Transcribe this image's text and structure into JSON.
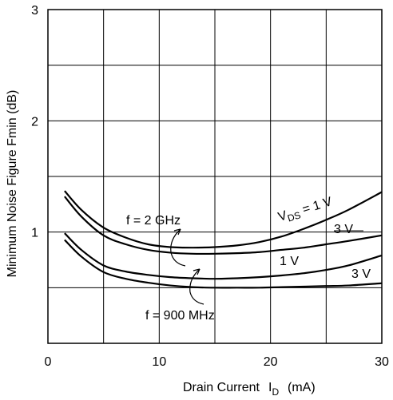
{
  "chart_data": {
    "type": "line",
    "title": "",
    "xlabel": "Drain Current",
    "xlabel_symbol": "I",
    "xlabel_subscript": "D",
    "xlabel_unit": "(mA)",
    "ylabel": "Minimum Noise Figure  Fmin  (dB)",
    "xlim": [
      0,
      30
    ],
    "ylim": [
      0,
      3
    ],
    "x_ticks": [
      0,
      10,
      20,
      30
    ],
    "x_tick_labels": [
      "0",
      "10",
      "20",
      "30"
    ],
    "y_ticks": [
      0,
      1,
      2,
      3
    ],
    "y_tick_labels": [
      "",
      "1",
      "2",
      "3"
    ],
    "grid": {
      "x_step": 5,
      "y_step": 0.5
    },
    "series": [
      {
        "group": "f = 2 GHz",
        "label": "1 V",
        "x": [
          1.5,
          3,
          5,
          7,
          9,
          11,
          13,
          15,
          17,
          19,
          21,
          23,
          25,
          27,
          30
        ],
        "y": [
          1.37,
          1.2,
          1.04,
          0.95,
          0.89,
          0.865,
          0.86,
          0.865,
          0.88,
          0.91,
          0.96,
          1.03,
          1.11,
          1.2,
          1.36
        ]
      },
      {
        "group": "f = 2 GHz",
        "label": "3 V",
        "x": [
          1.5,
          3,
          5,
          7,
          9,
          11,
          13,
          15,
          17,
          19,
          21,
          23,
          25,
          27,
          30
        ],
        "y": [
          1.32,
          1.14,
          0.97,
          0.89,
          0.84,
          0.815,
          0.805,
          0.805,
          0.81,
          0.82,
          0.84,
          0.86,
          0.89,
          0.92,
          0.97
        ]
      },
      {
        "group": "f = 900 MHz",
        "label": "1 V",
        "x": [
          1.5,
          3,
          5,
          7,
          9,
          11,
          13,
          15,
          17,
          19,
          21,
          23,
          25,
          27,
          30
        ],
        "y": [
          0.99,
          0.84,
          0.7,
          0.645,
          0.615,
          0.595,
          0.585,
          0.58,
          0.585,
          0.595,
          0.61,
          0.63,
          0.66,
          0.7,
          0.79
        ]
      },
      {
        "group": "f = 900 MHz",
        "label": "3 V",
        "x": [
          1.5,
          3,
          5,
          7,
          9,
          11,
          13,
          15,
          17,
          19,
          21,
          23,
          25,
          27,
          30
        ],
        "y": [
          0.93,
          0.78,
          0.64,
          0.58,
          0.545,
          0.52,
          0.505,
          0.5,
          0.5,
          0.5,
          0.505,
          0.51,
          0.515,
          0.52,
          0.54
        ]
      }
    ],
    "annotations": {
      "ghz": "f = 2 GHz",
      "mhz": "f = 900 MHz",
      "vds_prefix": "V",
      "vds_sub": "DS",
      "vds_suffix": " = 1 V",
      "ghz_3v": "3 V",
      "mhz_1v": "1 V",
      "mhz_3v": "3 V"
    }
  }
}
